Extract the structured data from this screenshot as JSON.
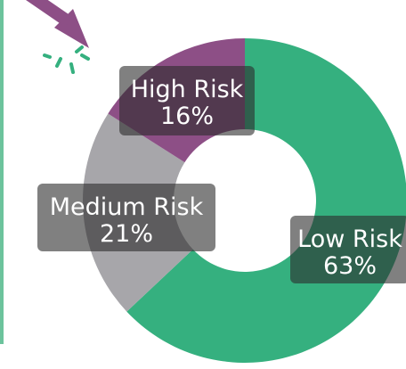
{
  "chart_data": {
    "type": "pie",
    "variant": "donut",
    "slices": [
      {
        "name": "Low Risk",
        "value": 63,
        "value_label": "63%",
        "color": "#35b07f"
      },
      {
        "name": "Medium Risk",
        "value": 21,
        "value_label": "21%",
        "color": "#a7a6aa"
      },
      {
        "name": "High Risk",
        "value": 16,
        "value_label": "16%",
        "color": "#8d4f86"
      }
    ],
    "start": "top",
    "direction": "clockwise",
    "label_box_color": "#2b2b2b",
    "accent_line_color": "#6cc39c",
    "pointer_icon": "cursor-arrow-click-icon",
    "pointer_color": "#8d4f86",
    "spark_color": "#35b07f"
  }
}
